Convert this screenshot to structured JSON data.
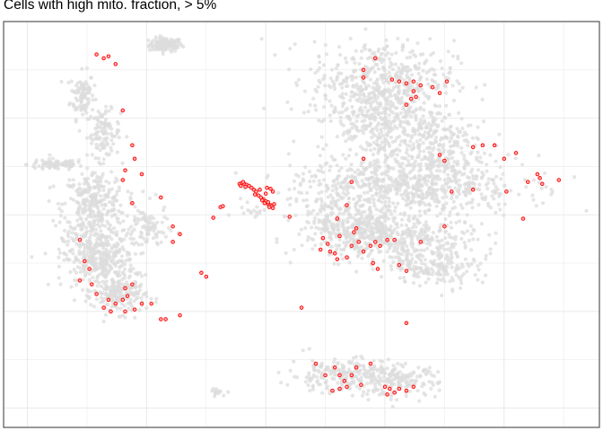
{
  "chart_data": {
    "type": "scatter",
    "title": "Cells with high mito. fraction, > 5%",
    "xlabel": "",
    "ylabel": "",
    "grid": true,
    "legend": "none",
    "colors": {
      "background_points": "#dcdcdc",
      "highlight_points": "#ff0000",
      "grid": "#ebebeb",
      "panel_border": "#333333"
    },
    "xlim": [
      -11,
      14
    ],
    "ylim": [
      -11,
      10
    ],
    "series": [
      {
        "role": "background",
        "clusters": [
          {
            "cx": -4.2,
            "cy": 8.8,
            "sx": 0.35,
            "sy": 0.18,
            "n": 120
          },
          {
            "cx": -7.7,
            "cy": 6.2,
            "sx": 0.25,
            "sy": 0.6,
            "n": 100
          },
          {
            "cx": -6.8,
            "cy": 4.2,
            "sx": 0.35,
            "sy": 0.6,
            "n": 110
          },
          {
            "cx": -8.8,
            "cy": 2.6,
            "sx": 0.6,
            "sy": 0.15,
            "n": 80
          },
          {
            "cx": -7.2,
            "cy": 0.5,
            "sx": 0.65,
            "sy": 0.9,
            "n": 320
          },
          {
            "cx": -7.0,
            "cy": -2.3,
            "sx": 0.75,
            "sy": 0.75,
            "n": 380
          },
          {
            "cx": -6.1,
            "cy": -4.2,
            "sx": 0.55,
            "sy": 0.45,
            "n": 180
          },
          {
            "cx": -5.0,
            "cy": -0.7,
            "sx": 0.45,
            "sy": 0.6,
            "n": 90
          },
          {
            "cx": 4.9,
            "cy": 7.0,
            "sx": 1.5,
            "sy": 1.0,
            "n": 440
          },
          {
            "cx": 4.8,
            "cy": 5.0,
            "sx": 1.3,
            "sy": 0.9,
            "n": 300
          },
          {
            "cx": 6.8,
            "cy": 3.5,
            "sx": 1.2,
            "sy": 0.9,
            "n": 260
          },
          {
            "cx": 5.8,
            "cy": 1.5,
            "sx": 2.4,
            "sy": 0.75,
            "n": 700
          },
          {
            "cx": 3.5,
            "cy": -0.6,
            "sx": 1.1,
            "sy": 0.7,
            "n": 300
          },
          {
            "cx": 5.8,
            "cy": -1.3,
            "sx": 1.5,
            "sy": 0.7,
            "n": 380
          },
          {
            "cx": 7.2,
            "cy": -2.7,
            "sx": 0.9,
            "sy": 0.5,
            "n": 150
          },
          {
            "cx": 3.2,
            "cy": -8.3,
            "sx": 1.1,
            "sy": 0.45,
            "n": 220
          },
          {
            "cx": 5.6,
            "cy": -8.6,
            "sx": 0.8,
            "sy": 0.4,
            "n": 150
          },
          {
            "cx": -2.0,
            "cy": -9.2,
            "sx": 0.2,
            "sy": 0.1,
            "n": 14
          },
          {
            "cx": -0.6,
            "cy": 0.2,
            "sx": 0.4,
            "sy": 0.12,
            "n": 14
          }
        ]
      },
      {
        "role": "highlight",
        "points": [
          [
            -1.1,
            1.6
          ],
          [
            -1.0,
            1.65
          ],
          [
            -0.9,
            1.6
          ],
          [
            -0.8,
            1.55
          ],
          [
            -0.7,
            1.5
          ],
          [
            -0.95,
            1.7
          ],
          [
            -0.85,
            1.45
          ],
          [
            -1.05,
            1.5
          ],
          [
            -0.6,
            1.4
          ],
          [
            -0.5,
            1.3
          ],
          [
            -0.4,
            1.2
          ],
          [
            -0.45,
            1.05
          ],
          [
            -0.3,
            1.0
          ],
          [
            -0.2,
            0.9
          ],
          [
            -0.1,
            0.8
          ],
          [
            0.0,
            0.7
          ],
          [
            0.1,
            0.55
          ],
          [
            0.2,
            0.5
          ],
          [
            0.25,
            0.45
          ],
          [
            -0.15,
            0.75
          ],
          [
            0.05,
            1.4
          ],
          [
            0.2,
            1.35
          ],
          [
            0.3,
            1.2
          ],
          [
            0.1,
            0.65
          ],
          [
            -0.05,
            0.6
          ],
          [
            0.15,
            0.4
          ],
          [
            0.3,
            0.35
          ],
          [
            -0.25,
            1.3
          ],
          [
            0.0,
            1.1
          ],
          [
            0.35,
            0.55
          ],
          [
            -1.9,
            0.4
          ],
          [
            -1.8,
            0.45
          ],
          [
            1.0,
            -0.1
          ],
          [
            3.1,
            -1.1
          ],
          [
            -2.2,
            -0.15
          ],
          [
            -7.1,
            8.3
          ],
          [
            -6.8,
            8.1
          ],
          [
            -6.6,
            8.2
          ],
          [
            -6.3,
            7.8
          ],
          [
            -6.0,
            5.4
          ],
          [
            -5.6,
            3.6
          ],
          [
            -5.5,
            2.9
          ],
          [
            -5.9,
            2.3
          ],
          [
            -5.2,
            2.1
          ],
          [
            -6.0,
            1.8
          ],
          [
            -5.6,
            0.6
          ],
          [
            -4.4,
            0.9
          ],
          [
            -3.9,
            -0.6
          ],
          [
            -3.6,
            -1.0
          ],
          [
            -3.9,
            -1.4
          ],
          [
            -7.8,
            -1.3
          ],
          [
            -7.6,
            -2.4
          ],
          [
            -7.4,
            -2.8
          ],
          [
            -7.8,
            -3.4
          ],
          [
            -7.3,
            -3.6
          ],
          [
            -7.1,
            -4.1
          ],
          [
            -6.6,
            -4.4
          ],
          [
            -6.3,
            -4.6
          ],
          [
            -6.0,
            -4.4
          ],
          [
            -5.8,
            -4.2
          ],
          [
            -5.6,
            -3.6
          ],
          [
            -5.9,
            -3.8
          ],
          [
            -6.8,
            -4.8
          ],
          [
            -6.5,
            -5.0
          ],
          [
            -5.9,
            -5.0
          ],
          [
            -5.5,
            -4.9
          ],
          [
            -5.2,
            -4.6
          ],
          [
            -4.8,
            -4.6
          ],
          [
            -4.4,
            -5.4
          ],
          [
            -4.2,
            -5.4
          ],
          [
            -3.6,
            -5.2
          ],
          [
            -2.7,
            -3.0
          ],
          [
            -2.5,
            -3.2
          ],
          [
            1.5,
            -4.8
          ],
          [
            2.4,
            -1.2
          ],
          [
            2.6,
            -1.5
          ],
          [
            2.3,
            -1.8
          ],
          [
            2.9,
            -2.0
          ],
          [
            2.7,
            -1.9
          ],
          [
            3.0,
            -2.3
          ],
          [
            3.4,
            -2.2
          ],
          [
            3.6,
            -1.6
          ],
          [
            3.7,
            -0.9
          ],
          [
            3.9,
            -1.4
          ],
          [
            4.1,
            -1.9
          ],
          [
            4.4,
            -1.6
          ],
          [
            4.6,
            -1.4
          ],
          [
            4.8,
            -1.6
          ],
          [
            5.1,
            -1.3
          ],
          [
            5.4,
            -1.3
          ],
          [
            4.5,
            -2.5
          ],
          [
            4.7,
            -2.8
          ],
          [
            5.6,
            -2.6
          ],
          [
            3.8,
            -0.7
          ],
          [
            3.0,
            -0.2
          ],
          [
            3.4,
            0.5
          ],
          [
            4.1,
            2.9
          ],
          [
            3.6,
            1.7
          ],
          [
            4.1,
            7.1
          ],
          [
            4.1,
            7.5
          ],
          [
            4.6,
            8.1
          ],
          [
            5.3,
            7.0
          ],
          [
            5.6,
            6.9
          ],
          [
            5.9,
            6.8
          ],
          [
            6.2,
            6.9
          ],
          [
            6.5,
            6.7
          ],
          [
            7.0,
            6.6
          ],
          [
            7.6,
            6.9
          ],
          [
            7.3,
            6.3
          ],
          [
            6.1,
            6.0
          ],
          [
            6.3,
            6.1
          ],
          [
            6.2,
            6.4
          ],
          [
            5.9,
            5.7
          ],
          [
            7.5,
            2.8
          ],
          [
            7.3,
            3.1
          ],
          [
            8.7,
            3.5
          ],
          [
            9.1,
            3.6
          ],
          [
            9.6,
            3.6
          ],
          [
            10.0,
            2.9
          ],
          [
            10.5,
            3.2
          ],
          [
            10.1,
            1.2
          ],
          [
            7.8,
            1.2
          ],
          [
            8.7,
            1.3
          ],
          [
            11.0,
            1.7
          ],
          [
            11.4,
            2.1
          ],
          [
            11.5,
            1.9
          ],
          [
            12.3,
            1.8
          ],
          [
            11.6,
            1.6
          ],
          [
            10.8,
            -0.2
          ],
          [
            7.5,
            -0.6
          ],
          [
            6.5,
            -1.4
          ],
          [
            5.9,
            -2.9
          ],
          [
            5.9,
            -5.6
          ],
          [
            2.1,
            -7.7
          ],
          [
            2.5,
            -8.3
          ],
          [
            2.9,
            -7.9
          ],
          [
            3.1,
            -8.3
          ],
          [
            3.3,
            -8.6
          ],
          [
            3.6,
            -8.3
          ],
          [
            3.8,
            -7.9
          ],
          [
            3.4,
            -8.9
          ],
          [
            3.1,
            -9.0
          ],
          [
            2.8,
            -9.1
          ],
          [
            4.0,
            -8.8
          ],
          [
            4.4,
            -7.7
          ],
          [
            5.0,
            -8.9
          ],
          [
            5.2,
            -9.0
          ],
          [
            5.4,
            -9.2
          ],
          [
            5.6,
            -9.0
          ],
          [
            5.9,
            -9.1
          ],
          [
            5.1,
            -9.3
          ],
          [
            6.2,
            -8.9
          ]
        ]
      }
    ]
  }
}
